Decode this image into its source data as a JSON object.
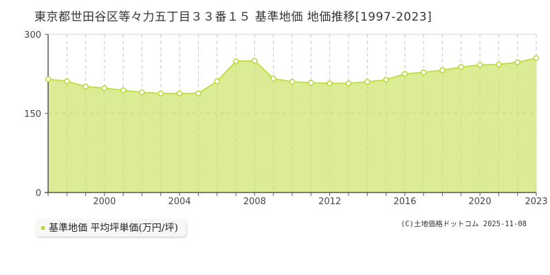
{
  "title": "東京都世田谷区等々力五丁目３３番１５ 基準地価 地価推移[1997-2023]",
  "legend": {
    "label": "基準地価 平均坪単価(万円/坪)",
    "color": "#b5d832"
  },
  "copyright": "(C)土地価格ドットコム 2025-11-08",
  "colors": {
    "fill": "#dcec95",
    "line": "#bfe04a",
    "marker_fill": "#ffffff",
    "marker_stroke": "#b5d832",
    "grid": "#c8c8c8",
    "axis": "#555555"
  },
  "chart_data": {
    "type": "area",
    "title": "東京都世田谷区等々力五丁目３３番１５ 基準地価 地価推移[1997-2023]",
    "xlabel": "",
    "ylabel": "",
    "ylim": [
      0,
      300
    ],
    "yticks": [
      0,
      150,
      300
    ],
    "xtick_labels": [
      "2000",
      "2004",
      "2008",
      "2012",
      "2016",
      "2020",
      "2023"
    ],
    "grid": true,
    "legend_position": "bottom-left",
    "series": [
      {
        "name": "基準地価 平均坪単価(万円/坪)",
        "x": [
          1997,
          1998,
          1999,
          2000,
          2001,
          2002,
          2003,
          2004,
          2005,
          2006,
          2007,
          2008,
          2009,
          2010,
          2011,
          2012,
          2013,
          2014,
          2015,
          2016,
          2017,
          2018,
          2019,
          2020,
          2021,
          2022,
          2023
        ],
        "values": [
          215,
          211,
          201,
          198,
          194,
          190,
          188,
          188,
          188,
          211,
          249,
          250,
          216,
          210,
          208,
          207,
          207,
          210,
          214,
          225,
          228,
          232,
          238,
          242,
          243,
          247,
          255
        ]
      }
    ]
  }
}
